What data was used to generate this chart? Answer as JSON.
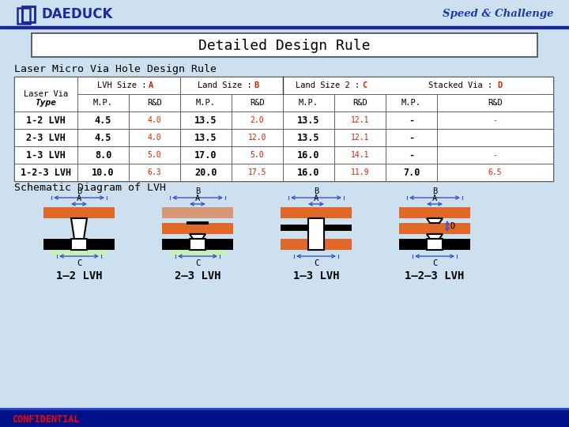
{
  "bg_color": "#cce0f0",
  "navy": "#1a2a9c",
  "title_box_text": "Detailed Design Rule",
  "logo_text": "DAEDUCK",
  "tagline": "Speed & Challenge",
  "section_title": "Laser Micro Via Hole Design Rule",
  "schematic_title": "Schematic Diagram of LVH",
  "confidential": "CONFIDENTIAL",
  "red_val": "#cc2200",
  "diagram_labels": [
    "1–2 LVH",
    "2–3 LVH",
    "1–3 LVH",
    "1–2–3 LVH"
  ],
  "rows_data": [
    [
      "1-2 LVH",
      "4.5",
      "4.0",
      "13.5",
      "2.0",
      "13.5",
      "12.1",
      "-",
      "-"
    ],
    [
      "2-3 LVH",
      "4.5",
      "4.0",
      "13.5",
      "12.0",
      "13.5",
      "12.1",
      "-",
      ""
    ],
    [
      "1-3 LVH",
      "8.0",
      "5.0",
      "17.0",
      "5.0",
      "16.0",
      "14.1",
      "-",
      "-"
    ],
    [
      "1-2-3 LVH",
      "10.0",
      "6.3",
      "20.0",
      "17.5",
      "16.0",
      "11.9",
      "7.0",
      "6.5"
    ]
  ]
}
